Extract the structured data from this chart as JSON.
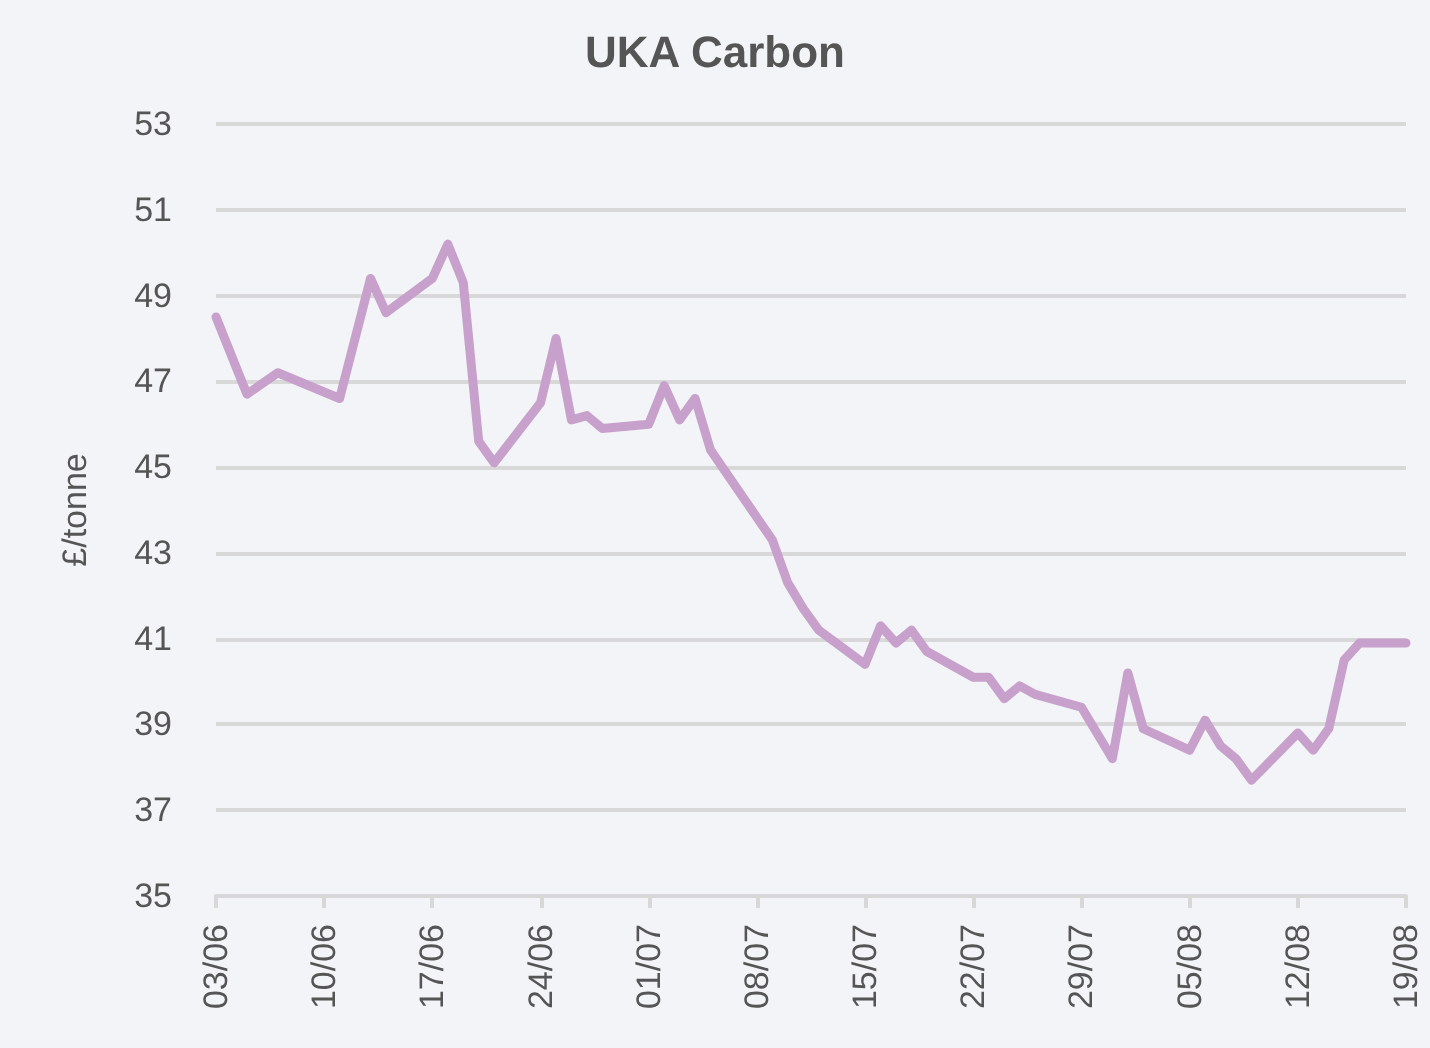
{
  "chart_data": {
    "type": "line",
    "title": "UKA Carbon",
    "ylabel": "£/tonne",
    "x": [
      "--06-03",
      "--06-05",
      "--06-07",
      "--06-11",
      "--06-12",
      "--06-13",
      "--06-14",
      "--06-17",
      "--06-18",
      "--06-19",
      "--06-20",
      "--06-21",
      "--06-24",
      "--06-25",
      "--06-26",
      "--06-27",
      "--06-28",
      "--07-01",
      "--07-02",
      "--07-03",
      "--07-04",
      "--07-05",
      "--07-09",
      "--07-10",
      "--07-11",
      "--07-12",
      "--07-15",
      "--07-16",
      "--07-17",
      "--07-18",
      "--07-19",
      "--07-22",
      "--07-23",
      "--07-24",
      "--07-25",
      "--07-26",
      "--07-29",
      "--07-31",
      "--08-01",
      "--08-02",
      "--08-05",
      "--08-06",
      "--08-07",
      "--08-08",
      "--08-09",
      "--08-12",
      "--08-13",
      "--08-14",
      "--08-15",
      "--08-16",
      "--08-19"
    ],
    "series": [
      {
        "color": "#c8a0cc",
        "values": [
          48.5,
          46.7,
          47.2,
          46.6,
          48.0,
          49.4,
          48.6,
          49.4,
          50.2,
          49.3,
          45.6,
          45.1,
          46.5,
          48.0,
          46.1,
          46.2,
          45.9,
          46.0,
          46.9,
          46.1,
          46.6,
          45.4,
          43.3,
          42.3,
          41.7,
          41.2,
          40.4,
          41.3,
          40.9,
          41.2,
          40.7,
          40.1,
          40.1,
          39.6,
          39.9,
          39.7,
          39.4,
          38.2,
          40.2,
          38.9,
          38.4,
          39.1,
          38.5,
          38.2,
          37.7,
          38.8,
          38.4,
          38.9,
          40.5,
          40.9,
          40.9
        ]
      }
    ],
    "xlim": [
      "--06-03",
      "--08-19"
    ],
    "xticks": [
      {
        "value": "--06-03",
        "label": "03/06"
      },
      {
        "value": "--06-10",
        "label": "10/06"
      },
      {
        "value": "--06-17",
        "label": "17/06"
      },
      {
        "value": "--06-24",
        "label": "24/06"
      },
      {
        "value": "--07-01",
        "label": "01/07"
      },
      {
        "value": "--07-08",
        "label": "08/07"
      },
      {
        "value": "--07-15",
        "label": "15/07"
      },
      {
        "value": "--07-22",
        "label": "22/07"
      },
      {
        "value": "--07-29",
        "label": "29/07"
      },
      {
        "value": "--08-05",
        "label": "05/08"
      },
      {
        "value": "--08-12",
        "label": "12/08"
      },
      {
        "value": "--08-19",
        "label": "19/08"
      }
    ],
    "ylim": [
      35,
      53
    ],
    "yticks": [
      35,
      37,
      39,
      41,
      43,
      45,
      47,
      49,
      51,
      53
    ],
    "grid": "y",
    "marker": "none",
    "line_style": "solid"
  }
}
